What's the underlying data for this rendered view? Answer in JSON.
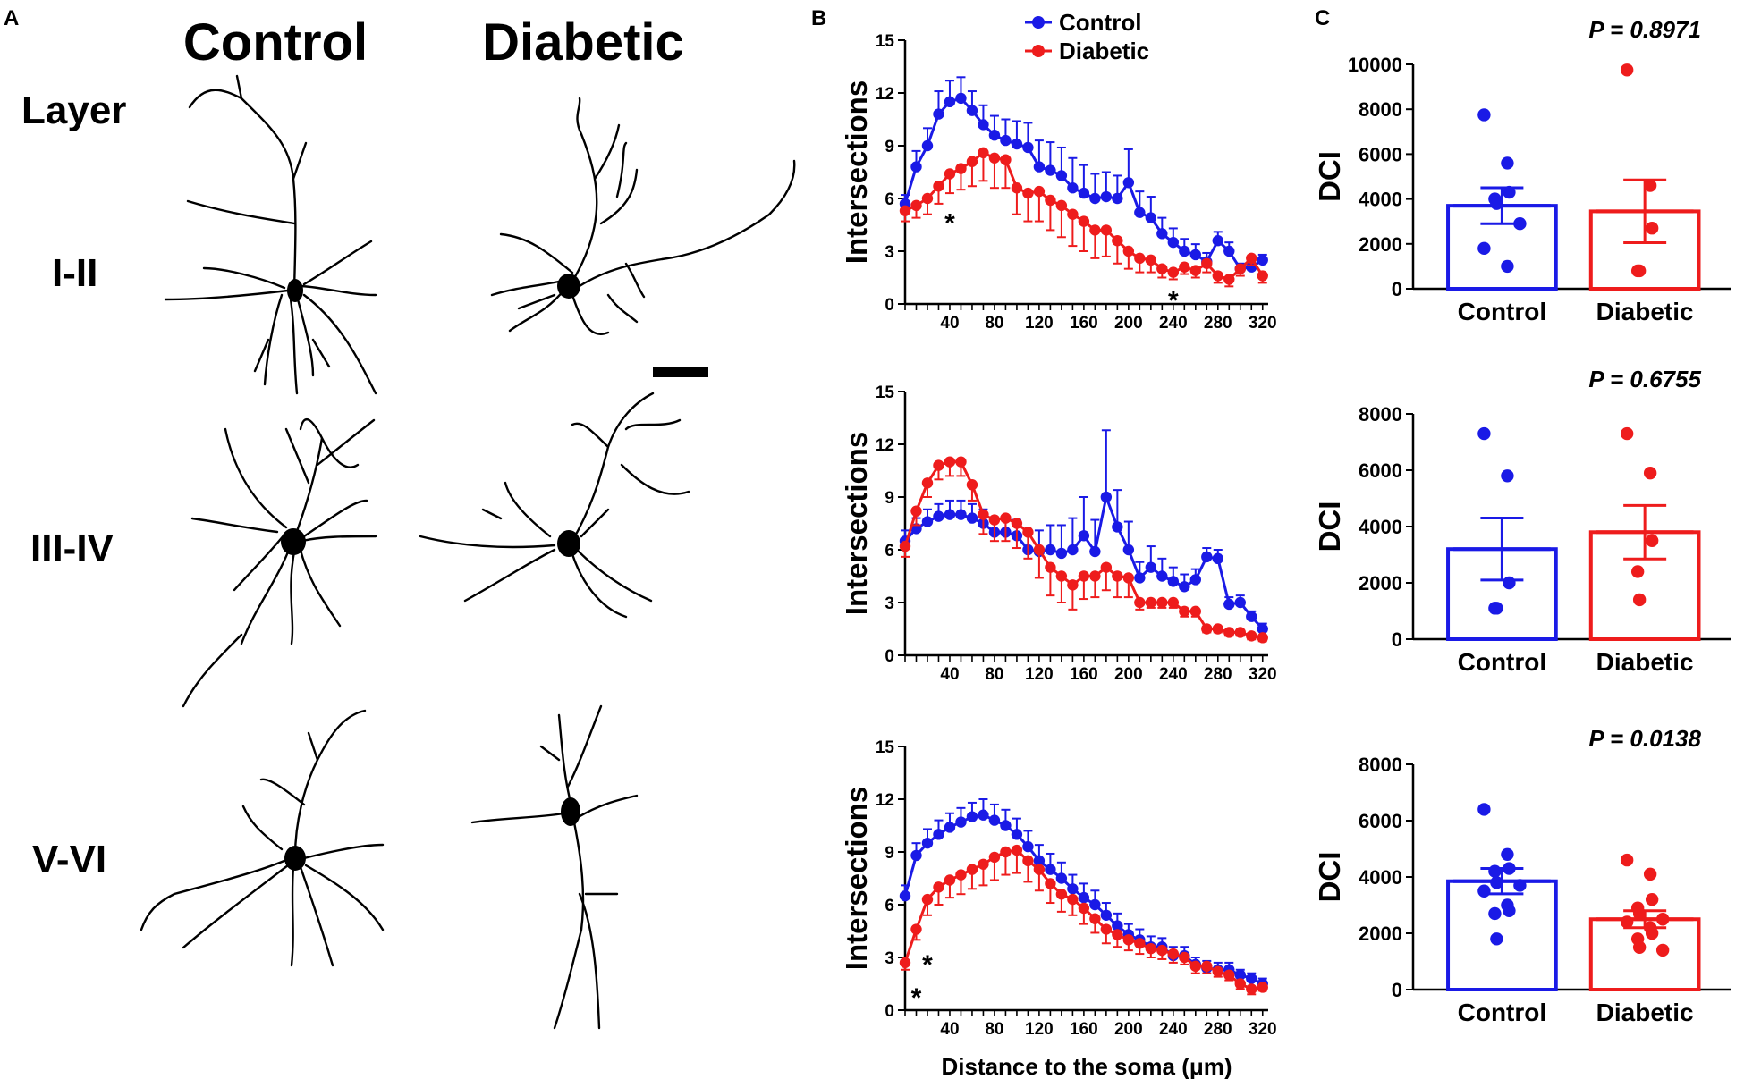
{
  "panel_a": {
    "label": "A",
    "columns": [
      "Control",
      "Diabetic"
    ],
    "layer_heading": "Layer",
    "layers": [
      "I-II",
      "III-IV",
      "V-VI"
    ]
  },
  "colors": {
    "control": "#1a1ae6",
    "diabetic": "#ee1c1c",
    "axis": "#000000"
  },
  "chart_data": [
    {
      "panel": "B",
      "layer": "I-II",
      "type": "line",
      "xlabel": "",
      "ylabel": "Intersections",
      "xlim": [
        0,
        325
      ],
      "ylim": [
        0,
        15
      ],
      "xticks": [
        40,
        80,
        120,
        160,
        200,
        240,
        280,
        320
      ],
      "yticks": [
        0,
        3,
        6,
        9,
        12,
        15
      ],
      "legend": {
        "position": "top",
        "entries": [
          "Control",
          "Diabetic"
        ]
      },
      "x": [
        0,
        10,
        20,
        30,
        40,
        50,
        60,
        70,
        80,
        90,
        100,
        110,
        120,
        130,
        140,
        150,
        160,
        170,
        180,
        190,
        200,
        210,
        220,
        230,
        240,
        250,
        260,
        270,
        280,
        290,
        300,
        310,
        320
      ],
      "series": [
        {
          "name": "Control",
          "values": [
            5.7,
            7.8,
            9.0,
            10.8,
            11.5,
            11.7,
            11.0,
            10.2,
            9.6,
            9.3,
            9.1,
            8.9,
            7.8,
            7.6,
            7.3,
            6.6,
            6.3,
            6.0,
            6.1,
            6.0,
            6.9,
            5.2,
            4.9,
            4.0,
            3.5,
            3.0,
            2.8,
            2.4,
            3.6,
            3.0,
            2.0,
            2.1,
            2.5
          ],
          "errors": [
            0.5,
            0.9,
            1.0,
            1.3,
            1.2,
            1.2,
            1.1,
            1.1,
            1.1,
            1.2,
            1.3,
            1.4,
            1.5,
            1.6,
            1.6,
            1.7,
            1.6,
            1.4,
            1.4,
            1.3,
            1.9,
            1.2,
            1.2,
            0.9,
            0.8,
            0.7,
            0.6,
            0.5,
            0.5,
            0.5,
            0.3,
            0.3,
            0.3
          ]
        },
        {
          "name": "Diabetic",
          "values": [
            5.3,
            5.6,
            6.0,
            6.7,
            7.4,
            7.7,
            8.1,
            8.6,
            8.3,
            8.2,
            6.6,
            6.3,
            6.4,
            5.9,
            5.6,
            5.1,
            4.7,
            4.2,
            4.2,
            3.6,
            3.0,
            2.6,
            2.5,
            2.0,
            1.8,
            2.1,
            1.9,
            2.3,
            1.6,
            1.4,
            2.0,
            2.6,
            1.6
          ],
          "errors": [
            0.6,
            0.7,
            0.9,
            1.0,
            1.1,
            1.2,
            1.4,
            1.6,
            1.7,
            1.6,
            1.5,
            1.6,
            1.7,
            1.7,
            1.8,
            1.8,
            1.7,
            1.6,
            1.5,
            1.3,
            1.0,
            0.8,
            0.7,
            0.5,
            0.4,
            0.4,
            0.4,
            0.5,
            0.4,
            0.4,
            0.4,
            0.4,
            0.4
          ]
        }
      ],
      "annotations": [
        {
          "text": "*",
          "x": 40,
          "y": 4.6
        },
        {
          "text": "*",
          "x": 240,
          "y": 0.2
        }
      ]
    },
    {
      "panel": "B",
      "layer": "III-IV",
      "type": "line",
      "xlabel": "",
      "ylabel": "Intersections",
      "xlim": [
        0,
        325
      ],
      "ylim": [
        0,
        15
      ],
      "xticks": [
        40,
        80,
        120,
        160,
        200,
        240,
        280,
        320
      ],
      "yticks": [
        0,
        3,
        6,
        9,
        12,
        15
      ],
      "x": [
        0,
        10,
        20,
        30,
        40,
        50,
        60,
        70,
        80,
        90,
        100,
        110,
        120,
        130,
        140,
        150,
        160,
        170,
        180,
        190,
        200,
        210,
        220,
        230,
        240,
        250,
        260,
        270,
        280,
        290,
        300,
        310,
        320
      ],
      "series": [
        {
          "name": "Control",
          "values": [
            6.5,
            7.2,
            7.6,
            7.9,
            8.0,
            8.0,
            7.8,
            7.5,
            7.0,
            7.0,
            6.8,
            6.0,
            5.9,
            6.0,
            5.8,
            6.0,
            6.8,
            5.9,
            9.0,
            7.3,
            6.0,
            4.4,
            5.0,
            4.5,
            4.2,
            3.9,
            4.3,
            5.6,
            5.5,
            2.9,
            3.0,
            2.2,
            1.5
          ],
          "errors": [
            0.6,
            0.6,
            0.7,
            0.7,
            0.8,
            0.8,
            0.8,
            0.8,
            0.8,
            0.9,
            0.9,
            1.0,
            1.2,
            1.4,
            1.6,
            1.8,
            2.2,
            1.8,
            3.8,
            2.1,
            1.6,
            0.9,
            1.2,
            1.0,
            0.8,
            0.7,
            0.6,
            0.5,
            0.5,
            0.4,
            0.4,
            0.3,
            0.3
          ]
        },
        {
          "name": "Diabetic",
          "values": [
            6.2,
            8.2,
            9.8,
            10.8,
            11.0,
            11.0,
            9.7,
            8.0,
            7.7,
            7.8,
            7.5,
            7.0,
            6.0,
            5.0,
            4.5,
            4.0,
            4.5,
            4.5,
            5.0,
            4.5,
            4.4,
            3.0,
            3.0,
            3.0,
            3.0,
            2.5,
            2.5,
            1.5,
            1.5,
            1.3,
            1.3,
            1.1,
            1.0
          ],
          "errors": [
            0.6,
            0.8,
            0.8,
            0.8,
            0.8,
            0.8,
            0.9,
            1.1,
            1.2,
            1.3,
            1.4,
            1.5,
            1.6,
            1.6,
            1.5,
            1.4,
            1.3,
            1.2,
            1.3,
            1.2,
            1.1,
            0.4,
            0.3,
            0.3,
            0.3,
            0.3,
            0.3,
            0.2,
            0.2,
            0.2,
            0.2,
            0.2,
            0.2
          ]
        }
      ]
    },
    {
      "panel": "B",
      "layer": "V-VI",
      "type": "line",
      "xlabel": "Distance to the soma (μm)",
      "ylabel": "Intersections",
      "xlim": [
        0,
        325
      ],
      "ylim": [
        0,
        15
      ],
      "xticks": [
        40,
        80,
        120,
        160,
        200,
        240,
        280,
        320
      ],
      "yticks": [
        0,
        3,
        6,
        9,
        12,
        15
      ],
      "x": [
        0,
        10,
        20,
        30,
        40,
        50,
        60,
        70,
        80,
        90,
        100,
        110,
        120,
        130,
        140,
        150,
        160,
        170,
        180,
        190,
        200,
        210,
        220,
        230,
        240,
        250,
        260,
        270,
        280,
        290,
        300,
        310,
        320
      ],
      "series": [
        {
          "name": "Control",
          "values": [
            6.5,
            8.8,
            9.5,
            10.0,
            10.4,
            10.7,
            11.0,
            11.1,
            10.8,
            10.5,
            10.0,
            9.3,
            8.5,
            8.0,
            7.5,
            6.9,
            6.4,
            6.0,
            5.4,
            4.8,
            4.3,
            4.0,
            3.6,
            3.6,
            3.1,
            3.1,
            2.6,
            2.4,
            2.3,
            2.3,
            2.0,
            1.8,
            1.5
          ],
          "errors": [
            0.6,
            0.7,
            0.8,
            0.8,
            0.8,
            0.8,
            0.8,
            0.9,
            0.9,
            0.9,
            0.9,
            0.9,
            0.9,
            0.9,
            0.9,
            0.8,
            0.8,
            0.8,
            0.7,
            0.7,
            0.6,
            0.6,
            0.6,
            0.5,
            0.5,
            0.5,
            0.4,
            0.4,
            0.4,
            0.4,
            0.3,
            0.3,
            0.3
          ]
        },
        {
          "name": "Diabetic",
          "values": [
            2.7,
            4.6,
            6.3,
            7.0,
            7.4,
            7.7,
            8.0,
            8.3,
            8.7,
            9.0,
            9.1,
            8.5,
            8.0,
            7.2,
            6.6,
            6.3,
            5.8,
            5.2,
            4.6,
            4.3,
            4.0,
            3.8,
            3.5,
            3.4,
            3.2,
            3.0,
            2.5,
            2.5,
            2.2,
            2.0,
            1.5,
            1.2,
            1.3
          ],
          "errors": [
            0.4,
            0.6,
            0.9,
            1.0,
            1.0,
            1.1,
            1.1,
            1.2,
            1.3,
            1.3,
            1.3,
            1.2,
            1.2,
            1.1,
            1.0,
            0.9,
            0.9,
            0.8,
            0.8,
            0.7,
            0.6,
            0.6,
            0.5,
            0.5,
            0.5,
            0.4,
            0.4,
            0.4,
            0.3,
            0.3,
            0.3,
            0.3,
            0.2
          ]
        }
      ],
      "annotations": [
        {
          "text": "*",
          "x": 10,
          "y": 0.7
        },
        {
          "text": "*",
          "x": 20,
          "y": 2.6
        }
      ]
    },
    {
      "panel": "C",
      "layer": "I-II",
      "type": "bar",
      "ylabel": "DCI",
      "categories": [
        "Control",
        "Diabetic"
      ],
      "ylim": [
        0,
        10000
      ],
      "yticks": [
        0,
        2000,
        4000,
        6000,
        8000,
        10000
      ],
      "values": [
        3700,
        3450
      ],
      "errors": [
        800,
        1400
      ],
      "points": [
        [
          7750,
          5600,
          4300,
          4000,
          3800,
          2900,
          1800,
          1000
        ],
        [
          9750,
          4600,
          2700,
          800,
          800
        ]
      ],
      "p_value": "P = 0.8971"
    },
    {
      "panel": "C",
      "layer": "III-IV",
      "type": "bar",
      "ylabel": "DCI",
      "categories": [
        "Control",
        "Diabetic"
      ],
      "ylim": [
        0,
        8000
      ],
      "yticks": [
        0,
        2000,
        4000,
        6000,
        8000
      ],
      "values": [
        3200,
        3800
      ],
      "errors": [
        1100,
        950
      ],
      "points": [
        [
          7300,
          5800,
          2000,
          1100,
          1100
        ],
        [
          7300,
          5900,
          3500,
          2400,
          1400
        ]
      ],
      "p_value": "P = 0.6755"
    },
    {
      "panel": "C",
      "layer": "V-VI",
      "type": "bar",
      "ylabel": "DCI",
      "categories": [
        "Control",
        "Diabetic"
      ],
      "ylim": [
        0,
        8000
      ],
      "yticks": [
        0,
        2000,
        4000,
        6000,
        8000
      ],
      "values": [
        3850,
        2500
      ],
      "errors": [
        450,
        300
      ],
      "points": [
        [
          6400,
          4800,
          4300,
          4200,
          3800,
          3700,
          3500,
          3000,
          2800,
          2700,
          1800
        ],
        [
          4600,
          4100,
          3200,
          2900,
          2700,
          2500,
          2400,
          2200,
          2000,
          1800,
          1500,
          1400
        ]
      ],
      "p_value": "P = 0.0138"
    }
  ],
  "panel_b": {
    "label": "B"
  },
  "panel_c": {
    "label": "C"
  }
}
